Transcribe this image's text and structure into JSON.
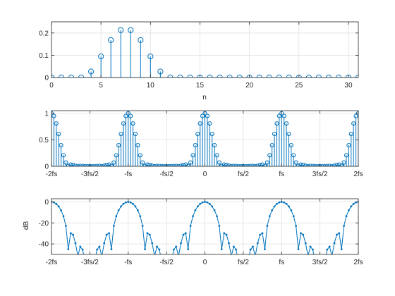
{
  "chart_data": [
    {
      "type": "stem",
      "xlabel": "n",
      "ylabel": "",
      "xlim": [
        0,
        31
      ],
      "ylim": [
        0,
        0.25
      ],
      "xticks": [
        0,
        5,
        10,
        15,
        20,
        25,
        30
      ],
      "xtick_labels": [
        "0",
        "5",
        "10",
        "15",
        "20",
        "25",
        "30"
      ],
      "yticks": [
        0,
        0.1,
        0.2
      ],
      "ytick_labels": [
        "0",
        "0.1",
        "0.2"
      ],
      "grid": true,
      "marker": "circle",
      "x": [
        0,
        1,
        2,
        3,
        4,
        5,
        6,
        7,
        8,
        9,
        10,
        11,
        12,
        13,
        14,
        15,
        16,
        17,
        18,
        19,
        20,
        21,
        22,
        23,
        24,
        25,
        26,
        27,
        28,
        29,
        30,
        31
      ],
      "y": [
        0,
        0,
        0,
        0,
        0.027,
        0.095,
        0.168,
        0.213,
        0.213,
        0.168,
        0.095,
        0.027,
        0,
        0,
        0,
        0,
        0,
        0,
        0,
        0,
        0,
        0,
        0,
        0,
        0,
        0,
        0,
        0,
        0,
        0,
        0,
        0
      ]
    },
    {
      "type": "stem",
      "xlabel": "",
      "ylabel": "",
      "xlim": [
        -2,
        2
      ],
      "ylim": [
        0,
        1.05
      ],
      "xticks": [
        -2,
        -1.5,
        -1,
        -0.5,
        0,
        0.5,
        1,
        1.5,
        2
      ],
      "xtick_labels": [
        "-2fs",
        "-3fs/2",
        "-fs",
        "-fs/2",
        "0",
        "fs/2",
        "fs",
        "3fs/2",
        "2fs"
      ],
      "yticks": [
        0,
        0.5,
        1
      ],
      "ytick_labels": [
        "0",
        "0.5",
        "1"
      ],
      "grid": true,
      "marker": "circle",
      "samples_per_fs": 32,
      "x": [],
      "y": []
    },
    {
      "type": "line",
      "xlabel": "",
      "ylabel": "dB",
      "xlim": [
        -2,
        2
      ],
      "ylim": [
        -50,
        3
      ],
      "xticks": [
        -2,
        -1.5,
        -1,
        -0.5,
        0,
        0.5,
        1,
        1.5,
        2
      ],
      "xtick_labels": [
        "-2fs",
        "-3fs/2",
        "-fs",
        "-fs/2",
        "0",
        "fs/2",
        "fs",
        "3fs/2",
        "2fs"
      ],
      "yticks": [
        0,
        -20,
        -40
      ],
      "ytick_labels": [
        "0",
        "-20",
        "-40"
      ],
      "grid": true,
      "marker": "dot",
      "x": [],
      "y": []
    }
  ],
  "colors": {
    "series": "#0072BD",
    "grid": "#dfdfdf",
    "axes": "#262626"
  }
}
